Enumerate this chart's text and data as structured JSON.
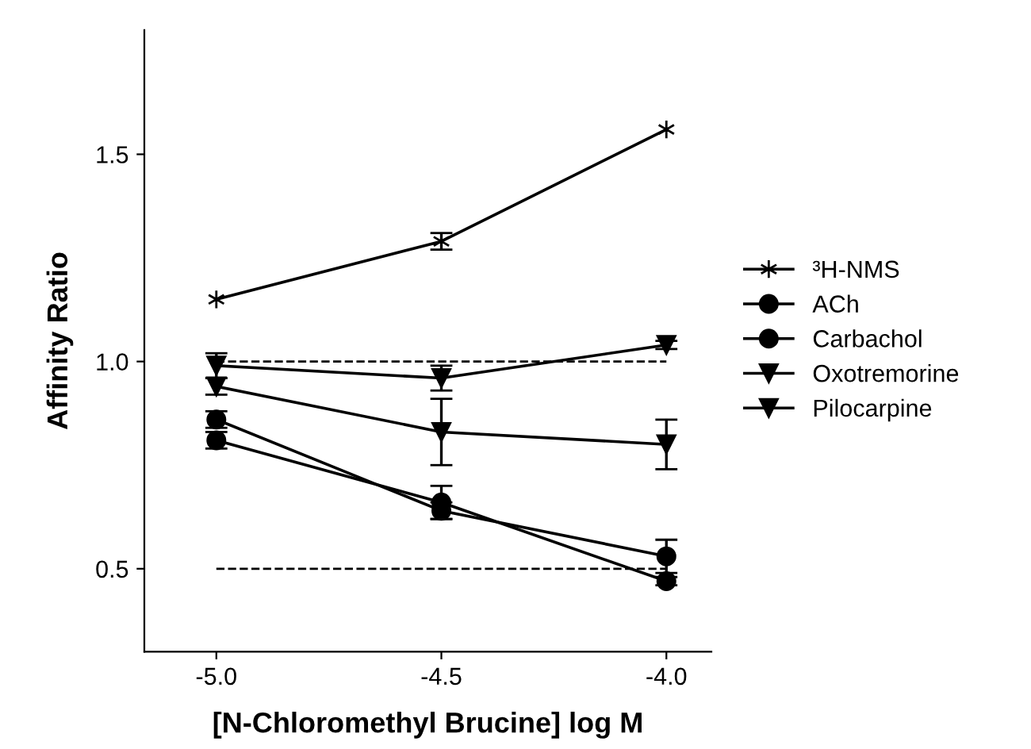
{
  "chart_data": {
    "type": "line",
    "xlabel": "[N-Chloromethyl Brucine] log M",
    "ylabel": "Affinity Ratio",
    "x": [
      -5.0,
      -4.5,
      -4.0
    ],
    "xlim": [
      -5.16,
      -3.9
    ],
    "xticks": [
      {
        "value": -5.0,
        "label": "-5.0"
      },
      {
        "value": -4.5,
        "label": "-4.5"
      },
      {
        "value": -4.0,
        "label": "-4.0"
      }
    ],
    "ylim": [
      0.3,
      1.8
    ],
    "yticks": [
      0.5,
      {
        "value": 1.0,
        "label": "1.0"
      },
      1.5
    ],
    "grid": false,
    "legend": "right",
    "line_style": "solid",
    "series": [
      {
        "name": "³H-NMS",
        "color": "#000000",
        "marker": "cross",
        "values": [
          1.15,
          1.29,
          1.56
        ],
        "errors": [
          null,
          0.02,
          null
        ]
      },
      {
        "name": "ACh",
        "color": "#000000",
        "marker": "circle",
        "values": [
          0.86,
          0.64,
          0.53
        ],
        "errors": [
          0.02,
          0.02,
          0.04
        ]
      },
      {
        "name": "Carbachol",
        "color": "#000000",
        "marker": "circle",
        "values": [
          0.81,
          0.66,
          0.47
        ],
        "errors": [
          0.02,
          0.04,
          0.01
        ]
      },
      {
        "name": "Oxotremorine",
        "color": "#000000",
        "marker": "triangle",
        "values": [
          0.94,
          0.83,
          0.8
        ],
        "errors": [
          0.02,
          0.08,
          0.06
        ]
      },
      {
        "name": "Pilocarpine",
        "color": "#000000",
        "marker": "triangle",
        "values": [
          0.99,
          0.96,
          1.04
        ],
        "errors": [
          0.03,
          0.03,
          0.01
        ]
      }
    ],
    "ref_lines": [
      {
        "axis": "y",
        "value": 1.0,
        "line_style": "dashed"
      },
      {
        "axis": "y",
        "value": 0.5,
        "line_style": "dashed"
      }
    ]
  }
}
